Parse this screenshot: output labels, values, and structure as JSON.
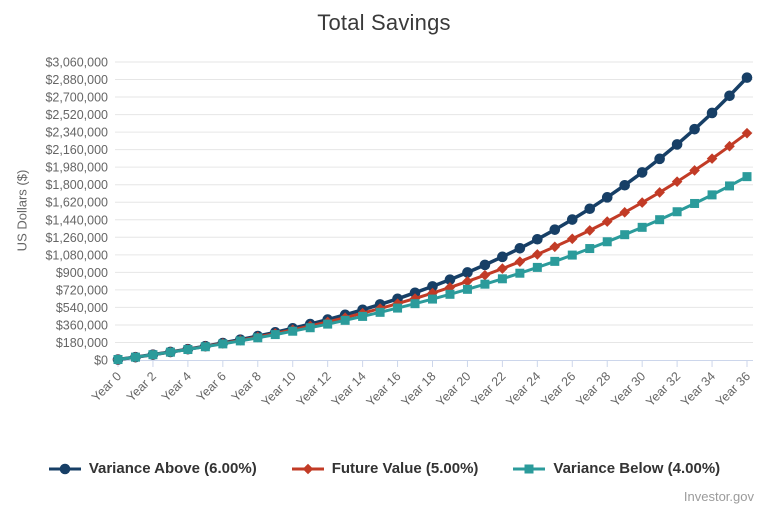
{
  "watermark": "Investor.gov",
  "colors": {
    "navy": "#173f66",
    "red": "#c23b26",
    "teal": "#2b9b9b",
    "grid": "#e6e6e6",
    "axis": "#ccd6eb",
    "tick_label": "#666666",
    "title_text": "#3a3a3a",
    "legend_text": "#333333",
    "watermark_text": "#9b9b9b"
  },
  "chart_data": {
    "type": "line",
    "title": "Total Savings",
    "xlabel": "",
    "ylabel": "US Dollars ($)",
    "x": [
      0,
      1,
      2,
      3,
      4,
      5,
      6,
      7,
      8,
      9,
      10,
      11,
      12,
      13,
      14,
      15,
      16,
      17,
      18,
      19,
      20,
      21,
      22,
      23,
      24,
      25,
      26,
      27,
      28,
      29,
      30,
      31,
      32,
      33,
      34,
      35,
      36
    ],
    "x_tick_labels": [
      "Year 0",
      "Year 2",
      "Year 4",
      "Year 6",
      "Year 8",
      "Year 10",
      "Year 12",
      "Year 14",
      "Year 16",
      "Year 18",
      "Year 20",
      "Year 22",
      "Year 24",
      "Year 26",
      "Year 28",
      "Year 30",
      "Year 32",
      "Year 34",
      "Year 36"
    ],
    "ylim": [
      0,
      3060000
    ],
    "ytick_interval": 180000,
    "ytick_labels": [
      "$0",
      "$180,000",
      "$360,000",
      "$540,000",
      "$720,000",
      "$900,000",
      "$1,080,000",
      "$1,260,000",
      "$1,440,000",
      "$1,620,000",
      "$1,800,000",
      "$1,980,000",
      "$2,160,000",
      "$2,340,000",
      "$2,520,000",
      "$2,700,000",
      "$2,880,000",
      "$3,060,000"
    ],
    "grid": "horizontal",
    "legend_position": "bottom",
    "source_label": "Investor.gov",
    "series": [
      {
        "name": "Variance Above (6.00%)",
        "color": "#173f66",
        "marker": "circle",
        "values": [
          5000,
          29300,
          55058,
          82361,
          111303,
          141981,
          174501,
          208970,
          245508,
          284239,
          325293,
          368811,
          414940,
          463836,
          515666,
          570606,
          628842,
          690573,
          756007,
          825368,
          898890,
          976823,
          1059433,
          1146999,
          1239819,
          1338208,
          1442500,
          1553050,
          1670233,
          1794447,
          1926114,
          2065681,
          2213622,
          2370439,
          2536665,
          2712865,
          2899637
        ]
      },
      {
        "name": "Future Value (5.00%)",
        "color": "#c23b26",
        "marker": "diamond",
        "values": [
          5000,
          29250,
          54713,
          81448,
          109521,
          138996,
          169946,
          202444,
          236566,
          272395,
          310013,
          349515,
          390990,
          434540,
          480267,
          528281,
          578694,
          631629,
          687210,
          745571,
          806849,
          871192,
          938751,
          1009689,
          1084174,
          1162382,
          1244501,
          1330726,
          1421263,
          1516326,
          1616142,
          1720949,
          1830997,
          1946547,
          2067874,
          2195267,
          2329031
        ]
      },
      {
        "name": "Variance Below (4.00%)",
        "color": "#2b9b9b",
        "marker": "square",
        "values": [
          5000,
          29200,
          54368,
          80543,
          107764,
          136075,
          165518,
          196139,
          227984,
          261104,
          295548,
          331370,
          368624,
          407369,
          447664,
          489571,
          533154,
          578480,
          625619,
          674644,
          725630,
          778655,
          833801,
          891153,
          950800,
          1012831,
          1077344,
          1144438,
          1214216,
          1286784,
          1362256,
          1440746,
          1522375,
          1607271,
          1695562,
          1787383,
          1882880
        ]
      }
    ]
  }
}
